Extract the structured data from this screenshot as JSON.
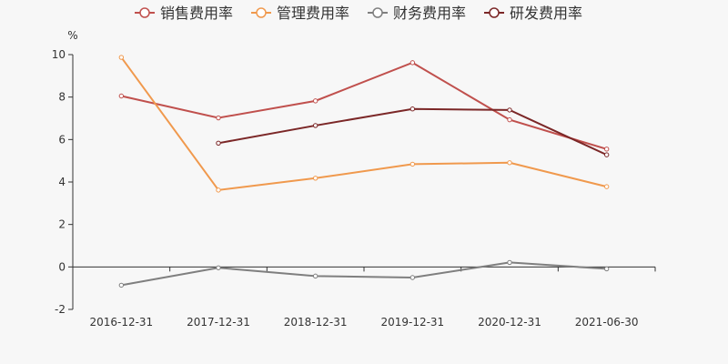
{
  "chart_data": {
    "type": "line",
    "y_unit": "%",
    "categories": [
      "2016-12-31",
      "2017-12-31",
      "2018-12-31",
      "2019-12-31",
      "2020-12-31",
      "2021-06-30"
    ],
    "ylim": [
      -2,
      10
    ],
    "yticks": [
      -2,
      0,
      2,
      4,
      6,
      8,
      10
    ],
    "grid": false,
    "legend_position": "top",
    "series": [
      {
        "name": "销售费用率",
        "color": "#c0504d",
        "values": [
          8.05,
          7.02,
          7.82,
          9.62,
          6.93,
          5.55
        ]
      },
      {
        "name": "管理费用率",
        "color": "#f0994d",
        "values": [
          9.87,
          3.62,
          4.18,
          4.84,
          4.91,
          3.78
        ]
      },
      {
        "name": "财务费用率",
        "color": "#7f7f7f",
        "values": [
          -0.86,
          -0.04,
          -0.43,
          -0.5,
          0.21,
          -0.09
        ]
      },
      {
        "name": "研发费用率",
        "color": "#7b2727",
        "values": [
          null,
          5.83,
          6.66,
          7.44,
          7.39,
          5.28
        ]
      }
    ]
  }
}
